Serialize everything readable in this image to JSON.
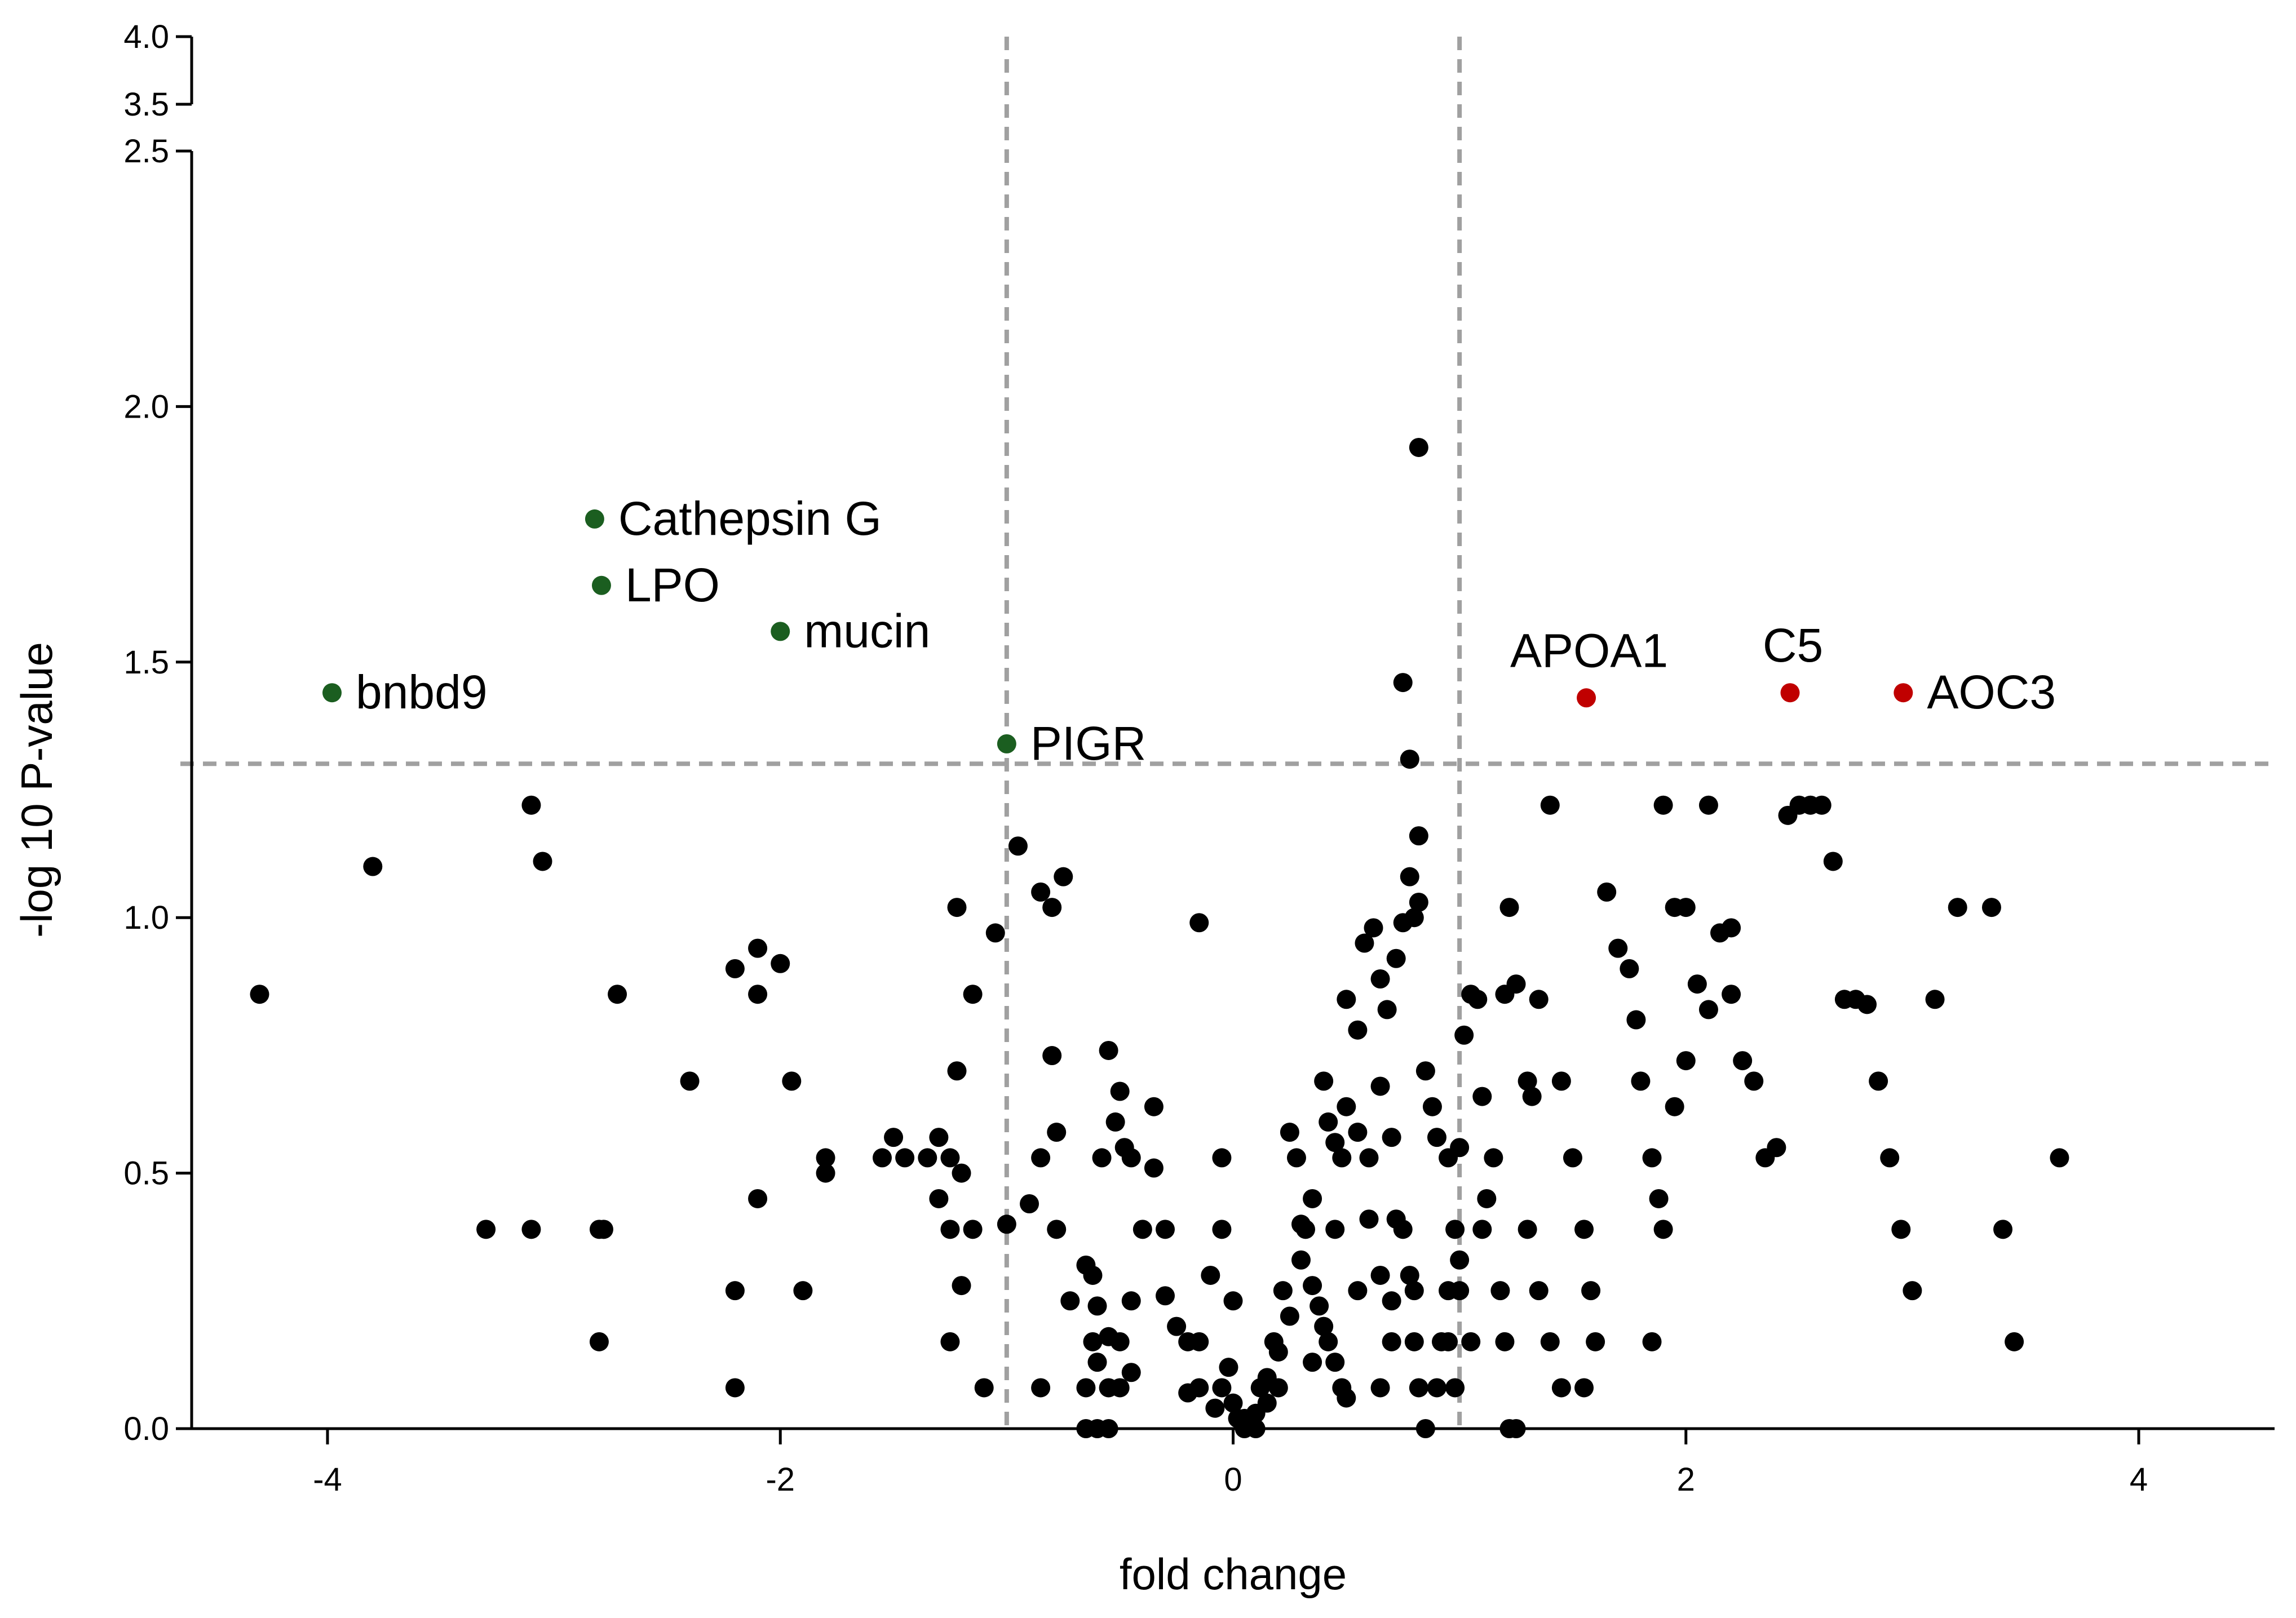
{
  "chart_data": {
    "type": "scatter",
    "title": "",
    "xlabel": "fold change",
    "ylabel": "-log 10 P-value",
    "xlim": [
      -4.6,
      4.6
    ],
    "ylim": [
      0,
      4.0
    ],
    "y_axis_break": [
      2.5,
      3.5
    ],
    "xticks": [
      -4,
      -2,
      0,
      2,
      4
    ],
    "xtick_labels": [
      "-4",
      "-2",
      "0",
      "2",
      "4"
    ],
    "yticks": [
      0.0,
      0.5,
      1.0,
      1.5,
      2.0,
      2.5,
      3.5,
      4.0
    ],
    "ytick_labels": [
      "0.0",
      "0.5",
      "1.0",
      "1.5",
      "2.0",
      "2.5",
      "3.5",
      "4.0"
    ],
    "thresholds": {
      "fold_change": [
        -1,
        1
      ],
      "neg_log10_p": 1.301
    },
    "colors": {
      "default": "#000000",
      "down": "#1b5e20",
      "up": "#c00000",
      "threshold": "#a0a0a0"
    },
    "labeled_points": [
      {
        "label": "bnbd9",
        "x": -3.98,
        "y": 1.44,
        "group": "down",
        "label_pos": "right"
      },
      {
        "label": "Cathepsin G",
        "x": -2.82,
        "y": 1.78,
        "group": "down",
        "label_pos": "right"
      },
      {
        "label": "LPO",
        "x": -2.79,
        "y": 1.65,
        "group": "down",
        "label_pos": "right"
      },
      {
        "label": "mucin",
        "x": -2.0,
        "y": 1.56,
        "group": "down",
        "label_pos": "right"
      },
      {
        "label": "PIGR",
        "x": -1.0,
        "y": 1.34,
        "group": "down",
        "label_pos": "right"
      },
      {
        "label": "APOA1",
        "x": 1.56,
        "y": 1.43,
        "group": "up",
        "label_pos": "above"
      },
      {
        "label": "C5",
        "x": 2.46,
        "y": 1.44,
        "group": "up",
        "label_pos": "above"
      },
      {
        "label": "AOC3",
        "x": 2.96,
        "y": 1.44,
        "group": "up",
        "label_pos": "right"
      }
    ],
    "points": [
      [
        -4.3,
        0.85
      ],
      [
        -3.8,
        1.1
      ],
      [
        -3.1,
        1.22
      ],
      [
        -3.05,
        1.11
      ],
      [
        -3.3,
        0.39
      ],
      [
        -3.1,
        0.39
      ],
      [
        -2.8,
        0.39
      ],
      [
        -2.78,
        0.39
      ],
      [
        -2.72,
        0.85
      ],
      [
        -2.8,
        0.17
      ],
      [
        -2.4,
        0.68
      ],
      [
        -2.2,
        0.9
      ],
      [
        -2.1,
        0.94
      ],
      [
        -2.1,
        0.85
      ],
      [
        -2.0,
        0.91
      ],
      [
        -1.95,
        0.68
      ],
      [
        -2.1,
        0.45
      ],
      [
        -2.2,
        0.27
      ],
      [
        -2.2,
        0.08
      ],
      [
        -1.9,
        0.27
      ],
      [
        -1.8,
        0.53
      ],
      [
        -1.8,
        0.5
      ],
      [
        -1.55,
        0.53
      ],
      [
        -1.5,
        0.57
      ],
      [
        -1.45,
        0.53
      ],
      [
        -1.35,
        0.53
      ],
      [
        -1.3,
        0.57
      ],
      [
        -1.25,
        0.53
      ],
      [
        -1.3,
        0.45
      ],
      [
        -1.2,
        0.5
      ],
      [
        -1.25,
        0.39
      ],
      [
        -1.15,
        0.39
      ],
      [
        -1.25,
        0.17
      ],
      [
        -1.2,
        0.28
      ],
      [
        -1.22,
        0.7
      ],
      [
        -1.22,
        1.02
      ],
      [
        -1.15,
        0.85
      ],
      [
        -1.1,
        0.08
      ],
      [
        -1.05,
        0.97
      ],
      [
        -1.0,
        0.4
      ],
      [
        -0.95,
        1.14
      ],
      [
        -0.9,
        0.44
      ],
      [
        -0.85,
        1.05
      ],
      [
        -0.8,
        1.02
      ],
      [
        -0.75,
        1.08
      ],
      [
        -0.8,
        0.73
      ],
      [
        -0.78,
        0.58
      ],
      [
        -0.85,
        0.53
      ],
      [
        -0.78,
        0.39
      ],
      [
        -0.72,
        0.25
      ],
      [
        -0.65,
        0.32
      ],
      [
        -0.62,
        0.3
      ],
      [
        -0.6,
        0.24
      ],
      [
        -0.55,
        0.74
      ],
      [
        -0.5,
        0.66
      ],
      [
        -0.52,
        0.6
      ],
      [
        -0.48,
        0.55
      ],
      [
        -0.45,
        0.53
      ],
      [
        -0.58,
        0.53
      ],
      [
        -0.62,
        0.17
      ],
      [
        -0.55,
        0.18
      ],
      [
        -0.5,
        0.17
      ],
      [
        -0.6,
        0.13
      ],
      [
        -0.55,
        0.08
      ],
      [
        -0.65,
        0.08
      ],
      [
        -0.85,
        0.08
      ],
      [
        -0.65,
        0.0
      ],
      [
        -0.6,
        0.0
      ],
      [
        -0.55,
        0.0
      ],
      [
        -0.5,
        0.08
      ],
      [
        -0.45,
        0.11
      ],
      [
        -0.45,
        0.25
      ],
      [
        -0.4,
        0.39
      ],
      [
        -0.35,
        0.63
      ],
      [
        -0.35,
        0.51
      ],
      [
        -0.3,
        0.39
      ],
      [
        -0.3,
        0.26
      ],
      [
        -0.25,
        0.2
      ],
      [
        -0.2,
        0.17
      ],
      [
        -0.15,
        0.17
      ],
      [
        -0.2,
        0.07
      ],
      [
        -0.15,
        0.08
      ],
      [
        -0.1,
        0.3
      ],
      [
        -0.05,
        0.39
      ],
      [
        -0.15,
        0.99
      ],
      [
        -0.05,
        0.53
      ],
      [
        0.0,
        0.25
      ],
      [
        -0.02,
        0.12
      ],
      [
        -0.05,
        0.08
      ],
      [
        0.0,
        0.05
      ],
      [
        0.02,
        0.02
      ],
      [
        0.05,
        0.0
      ],
      [
        0.1,
        0.03
      ],
      [
        0.12,
        0.08
      ],
      [
        0.15,
        0.1
      ],
      [
        0.18,
        0.17
      ],
      [
        0.2,
        0.08
      ],
      [
        0.22,
        0.27
      ],
      [
        0.25,
        0.58
      ],
      [
        0.28,
        0.53
      ],
      [
        0.3,
        0.4
      ],
      [
        0.32,
        0.39
      ],
      [
        0.35,
        0.28
      ],
      [
        0.38,
        0.24
      ],
      [
        0.4,
        0.2
      ],
      [
        0.42,
        0.17
      ],
      [
        0.45,
        0.13
      ],
      [
        0.48,
        0.08
      ],
      [
        0.5,
        0.06
      ],
      [
        0.35,
        0.13
      ],
      [
        0.4,
        0.68
      ],
      [
        0.42,
        0.6
      ],
      [
        0.45,
        0.56
      ],
      [
        0.48,
        0.53
      ],
      [
        0.5,
        0.63
      ],
      [
        0.55,
        0.58
      ],
      [
        0.6,
        0.53
      ],
      [
        0.65,
        0.67
      ],
      [
        0.7,
        0.57
      ],
      [
        0.72,
        0.41
      ],
      [
        0.75,
        0.39
      ],
      [
        0.78,
        0.3
      ],
      [
        0.8,
        0.27
      ],
      [
        0.8,
        0.17
      ],
      [
        0.82,
        0.08
      ],
      [
        0.85,
        0.0
      ],
      [
        0.5,
        0.84
      ],
      [
        0.55,
        0.78
      ],
      [
        0.58,
        0.95
      ],
      [
        0.62,
        0.98
      ],
      [
        0.65,
        0.88
      ],
      [
        0.68,
        0.82
      ],
      [
        0.72,
        0.92
      ],
      [
        0.75,
        0.99
      ],
      [
        0.8,
        1.0
      ],
      [
        0.82,
        1.03
      ],
      [
        0.78,
        1.08
      ],
      [
        0.82,
        1.16
      ],
      [
        0.78,
        1.31
      ],
      [
        0.75,
        1.46
      ],
      [
        0.82,
        1.92
      ],
      [
        0.85,
        0.7
      ],
      [
        0.88,
        0.63
      ],
      [
        0.9,
        0.57
      ],
      [
        0.95,
        0.53
      ],
      [
        0.98,
        0.39
      ],
      [
        1.0,
        0.33
      ],
      [
        0.95,
        0.27
      ],
      [
        0.92,
        0.17
      ],
      [
        0.98,
        0.08
      ],
      [
        1.0,
        0.55
      ],
      [
        1.02,
        0.77
      ],
      [
        1.05,
        0.85
      ],
      [
        1.08,
        0.84
      ],
      [
        1.1,
        0.65
      ],
      [
        1.15,
        0.53
      ],
      [
        1.18,
        0.27
      ],
      [
        1.2,
        0.17
      ],
      [
        1.22,
        0.0
      ],
      [
        1.25,
        0.0
      ],
      [
        1.2,
        0.85
      ],
      [
        1.22,
        1.02
      ],
      [
        1.25,
        0.87
      ],
      [
        1.3,
        0.68
      ],
      [
        1.32,
        0.65
      ],
      [
        1.35,
        0.84
      ],
      [
        1.4,
        1.22
      ],
      [
        1.45,
        0.68
      ],
      [
        1.5,
        0.53
      ],
      [
        1.55,
        0.39
      ],
      [
        1.58,
        0.27
      ],
      [
        1.6,
        0.17
      ],
      [
        1.55,
        0.08
      ],
      [
        1.65,
        1.05
      ],
      [
        1.7,
        0.94
      ],
      [
        1.75,
        0.9
      ],
      [
        1.78,
        0.8
      ],
      [
        1.8,
        0.68
      ],
      [
        1.85,
        0.53
      ],
      [
        1.88,
        0.45
      ],
      [
        1.9,
        1.22
      ],
      [
        1.95,
        1.02
      ],
      [
        2.0,
        1.02
      ],
      [
        2.05,
        0.87
      ],
      [
        2.1,
        0.82
      ],
      [
        2.0,
        0.72
      ],
      [
        1.95,
        0.63
      ],
      [
        1.9,
        0.39
      ],
      [
        1.85,
        0.17
      ],
      [
        2.1,
        1.22
      ],
      [
        2.15,
        0.97
      ],
      [
        2.2,
        0.98
      ],
      [
        2.2,
        0.85
      ],
      [
        2.25,
        0.72
      ],
      [
        2.3,
        0.68
      ],
      [
        2.35,
        0.53
      ],
      [
        2.4,
        0.55
      ],
      [
        2.45,
        1.2
      ],
      [
        2.5,
        1.22
      ],
      [
        2.55,
        1.22
      ],
      [
        2.6,
        1.22
      ],
      [
        2.65,
        1.11
      ],
      [
        2.7,
        0.84
      ],
      [
        2.75,
        0.84
      ],
      [
        2.8,
        0.83
      ],
      [
        2.85,
        0.68
      ],
      [
        2.9,
        0.53
      ],
      [
        2.95,
        0.39
      ],
      [
        3.0,
        0.27
      ],
      [
        3.1,
        0.84
      ],
      [
        3.2,
        1.02
      ],
      [
        3.35,
        1.02
      ],
      [
        3.4,
        0.39
      ],
      [
        3.45,
        0.17
      ],
      [
        3.65,
        0.53
      ],
      [
        0.6,
        0.41
      ],
      [
        0.65,
        0.3
      ],
      [
        0.7,
        0.25
      ],
      [
        0.55,
        0.27
      ],
      [
        0.45,
        0.39
      ],
      [
        0.35,
        0.45
      ],
      [
        0.3,
        0.33
      ],
      [
        0.25,
        0.22
      ],
      [
        0.2,
        0.15
      ],
      [
        0.15,
        0.05
      ],
      [
        0.1,
        0.0
      ],
      [
        0.05,
        0.02
      ],
      [
        -0.08,
        0.04
      ],
      [
        0.65,
        0.08
      ],
      [
        0.7,
        0.17
      ],
      [
        0.9,
        0.08
      ],
      [
        0.95,
        0.17
      ],
      [
        1.0,
        0.27
      ],
      [
        1.05,
        0.17
      ],
      [
        1.1,
        0.39
      ],
      [
        1.12,
        0.45
      ],
      [
        1.3,
        0.39
      ],
      [
        1.35,
        0.27
      ],
      [
        1.4,
        0.17
      ],
      [
        1.45,
        0.08
      ]
    ]
  }
}
